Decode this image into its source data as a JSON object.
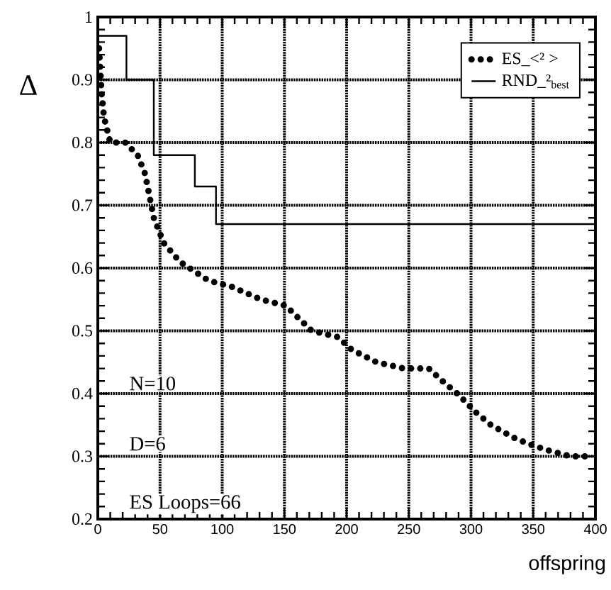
{
  "chart_data": {
    "type": "line",
    "xlabel": "offspring",
    "ylabel": "Δ",
    "xlim": [
      0,
      400
    ],
    "ylim": [
      0.2,
      1
    ],
    "xticks": [
      0,
      50,
      100,
      150,
      200,
      250,
      300,
      350,
      400
    ],
    "yticks": [
      0.2,
      0.3,
      0.4,
      0.5,
      0.6,
      0.7,
      0.8,
      0.9,
      1
    ],
    "grid": true,
    "legend": "top right",
    "annotations": [
      "N=10",
      "D=6",
      "ES Loops=66"
    ],
    "series": [
      {
        "name": "ES_<² >",
        "line_style": "dotted",
        "marker": "none",
        "color": "#000000",
        "x": [
          1,
          3,
          5,
          10,
          22,
          32,
          38,
          41,
          45,
          53,
          66,
          89,
          108,
          131,
          151,
          172,
          193,
          204,
          224,
          246,
          266,
          277,
          289,
          304,
          316,
          334,
          346,
          361,
          380,
          392
        ],
        "values": [
          0.95,
          0.88,
          0.84,
          0.8,
          0.8,
          0.78,
          0.75,
          0.72,
          0.68,
          0.64,
          0.61,
          0.58,
          0.57,
          0.55,
          0.54,
          0.5,
          0.49,
          0.47,
          0.45,
          0.44,
          0.44,
          0.42,
          0.4,
          0.37,
          0.35,
          0.33,
          0.32,
          0.31,
          0.3,
          0.3
        ]
      },
      {
        "name": "RND_²$_{best}$",
        "type": "step",
        "line_style": "solid",
        "marker": "none",
        "color": "#000000",
        "x": [
          0,
          23,
          45,
          78,
          95,
          400
        ],
        "values": [
          0.97,
          0.9,
          0.78,
          0.73,
          0.67,
          0.67
        ]
      }
    ]
  }
}
